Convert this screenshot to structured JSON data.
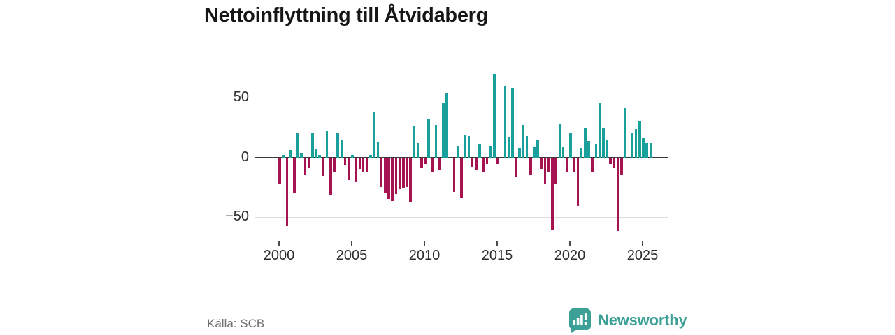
{
  "title": "Nettoinflyttning till Åtvidaberg",
  "source": "Källa: SCB",
  "branding": {
    "wordmark": "Newsworthy",
    "icon": "newsworthy-speech-bubble-chart"
  },
  "colors": {
    "positive_bar": "#1aa09b",
    "negative_bar": "#a51450",
    "brand": "#3da097",
    "gridline": "#dcdcdc",
    "zero_line": "#3a3a3a",
    "axis_text": "#2e2e2e",
    "source_text": "#6f6f6f",
    "title_text": "#161616"
  },
  "chart_data": {
    "type": "bar",
    "title": "Nettoinflyttning till Åtvidaberg",
    "frequency": "quarterly",
    "start_year": 2000,
    "xlabel": "",
    "ylabel": "",
    "ylim": [
      -65,
      75
    ],
    "grid": "horizontal",
    "y_ticks": [
      {
        "label": "50",
        "value": 50
      },
      {
        "label": "0",
        "value": 0
      },
      {
        "label": "−50",
        "value": -50
      }
    ],
    "x_ticks": [
      2000,
      2005,
      2010,
      2015,
      2020,
      2025
    ],
    "years": [
      {
        "year": 2000,
        "values": [
          -22,
          2,
          -57,
          6
        ]
      },
      {
        "year": 2001,
        "values": [
          -29,
          21,
          4,
          -14
        ]
      },
      {
        "year": 2002,
        "values": [
          -8,
          21,
          7,
          2
        ]
      },
      {
        "year": 2003,
        "values": [
          -15,
          22,
          -31,
          -12
        ]
      },
      {
        "year": 2004,
        "values": [
          20,
          15,
          -6,
          -18
        ]
      },
      {
        "year": 2005,
        "values": [
          2,
          -20,
          -9,
          -12
        ]
      },
      {
        "year": 2006,
        "values": [
          -12,
          2,
          38,
          13
        ]
      },
      {
        "year": 2007,
        "values": [
          -24,
          -29,
          -34,
          -36
        ]
      },
      {
        "year": 2008,
        "values": [
          -30,
          -26,
          -25,
          -24
        ]
      },
      {
        "year": 2009,
        "values": [
          -37,
          26,
          12,
          -8
        ]
      },
      {
        "year": 2010,
        "values": [
          -5,
          32,
          -12,
          27
        ]
      },
      {
        "year": 2011,
        "values": [
          -10,
          46,
          54,
          0
        ]
      },
      {
        "year": 2012,
        "values": [
          -28,
          10,
          -33,
          19
        ]
      },
      {
        "year": 2013,
        "values": [
          18,
          -7,
          -10,
          11
        ]
      },
      {
        "year": 2014,
        "values": [
          -11,
          -5,
          10,
          70
        ]
      },
      {
        "year": 2015,
        "values": [
          -5,
          0,
          60,
          17
        ]
      },
      {
        "year": 2016,
        "values": [
          58,
          -16,
          8,
          27
        ]
      },
      {
        "year": 2017,
        "values": [
          18,
          -14,
          9,
          15
        ]
      },
      {
        "year": 2018,
        "values": [
          -9,
          -21,
          -11,
          -60
        ]
      },
      {
        "year": 2019,
        "values": [
          -21,
          28,
          9,
          -12
        ]
      },
      {
        "year": 2020,
        "values": [
          20,
          -12,
          -40,
          8
        ]
      },
      {
        "year": 2021,
        "values": [
          25,
          14,
          -11,
          11
        ]
      },
      {
        "year": 2022,
        "values": [
          46,
          25,
          15,
          -5
        ]
      },
      {
        "year": 2023,
        "values": [
          -8,
          -61,
          -14,
          41
        ]
      },
      {
        "year": 2024,
        "values": [
          0,
          20,
          24,
          31
        ]
      },
      {
        "year": 2025,
        "values": [
          16,
          12,
          12
        ]
      }
    ]
  }
}
